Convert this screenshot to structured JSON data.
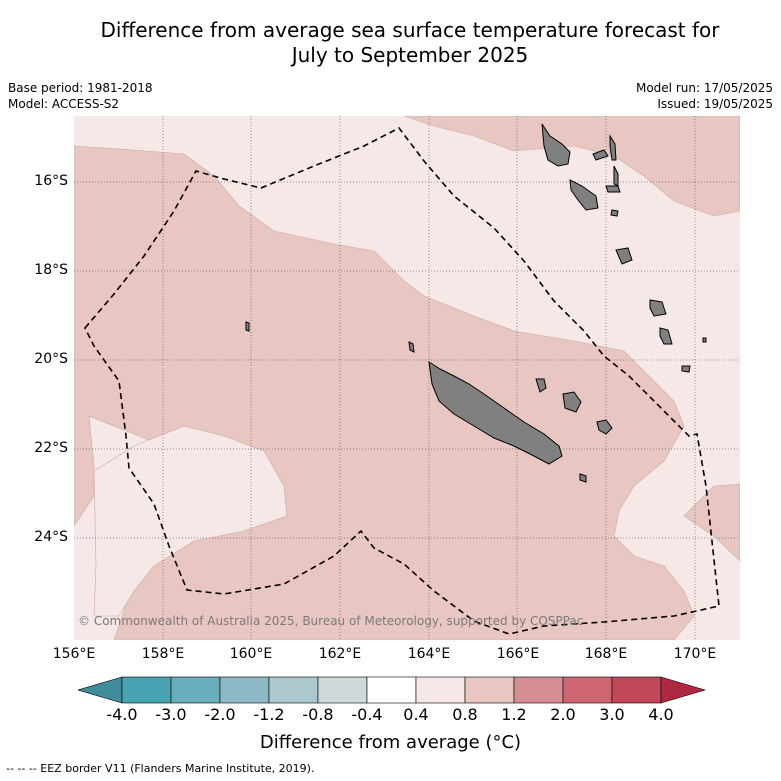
{
  "title_line1": "Difference from average sea surface temperature forecast for",
  "title_line2": "July to September 2025",
  "meta": {
    "base_period": "Base period: 1981-2018",
    "model": "Model: ACCESS-S2",
    "model_run": "Model run: 17/05/2025",
    "issued": "Issued: 19/05/2025"
  },
  "latitude_labels": [
    "16°S",
    "18°S",
    "20°S",
    "22°S",
    "24°S"
  ],
  "longitude_labels": [
    "156°E",
    "158°E",
    "160°E",
    "162°E",
    "164°E",
    "166°E",
    "168°E",
    "170°E"
  ],
  "colorbar": {
    "ticks": [
      "-4.0",
      "-3.0",
      "-2.0",
      "-1.2",
      "-0.8",
      "-0.4",
      "0.4",
      "0.8",
      "1.2",
      "2.0",
      "3.0",
      "4.0"
    ],
    "label": "Difference from average (°C)",
    "colors": [
      "#3f8c9a",
      "#48a3b2",
      "#6aadbd",
      "#8db8c5",
      "#aac8cd",
      "#cfd9da",
      "#ffffff",
      "#f5e8e6",
      "#e8c7c2",
      "#d68e95",
      "#cd6670",
      "#c14859",
      "#b0283f"
    ]
  },
  "map": {
    "land_color": "#808080",
    "warm_light_color": "#f5e8e6",
    "warm_mid_color": "#e8c7c2"
  },
  "copyright": "© Commonwealth of Australia 2025, Bureau of Meteorology, supported by COSPPac",
  "footnote": "-- -- -- EEZ border V11 (Flanders Marine Institute, 2019)."
}
